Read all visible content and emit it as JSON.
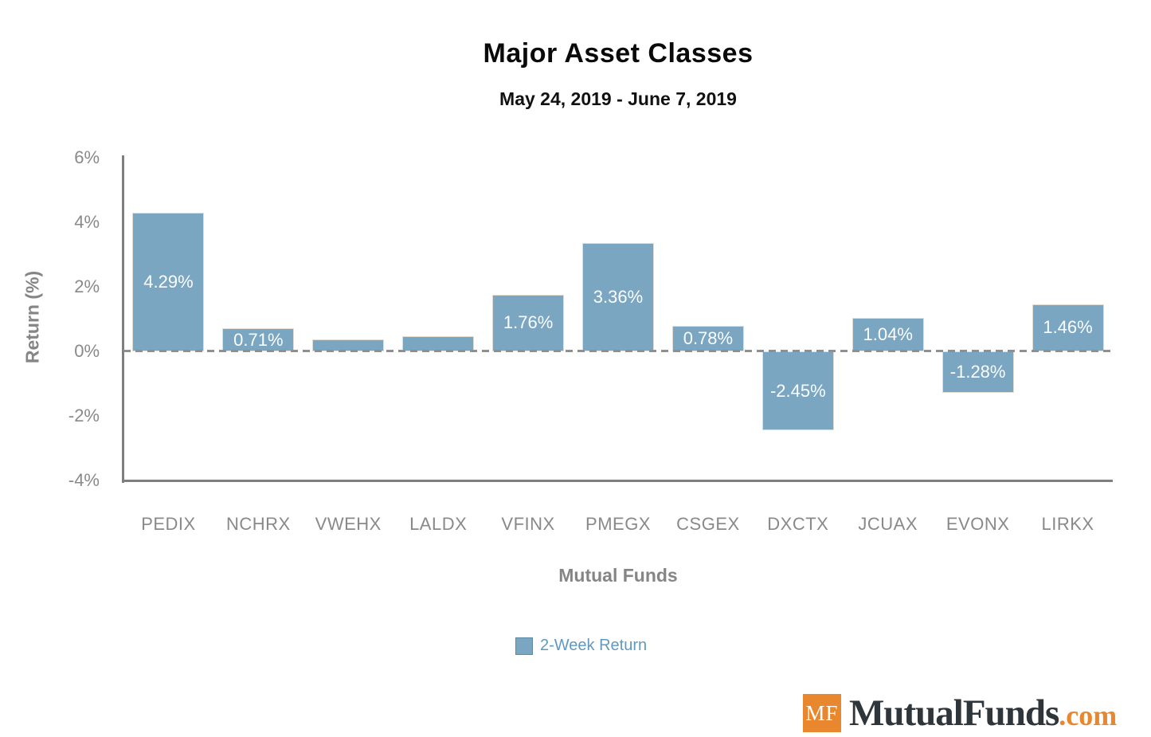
{
  "chart_data": {
    "type": "bar",
    "title": "Major Asset Classes",
    "subtitle": "May 24, 2019 - June 7, 2019",
    "xlabel": "Mutual Funds",
    "ylabel": "Return (%)",
    "categories": [
      "PEDIX",
      "NCHRX",
      "VWEHX",
      "LALDX",
      "VFINX",
      "PMEGX",
      "CSGEX",
      "DXCTX",
      "JCUAX",
      "EVONX",
      "LIRKX"
    ],
    "values": [
      4.29,
      0.71,
      0.38,
      0.48,
      1.76,
      3.36,
      0.78,
      -2.45,
      1.04,
      -1.28,
      1.46
    ],
    "bar_labels": [
      "4.29%",
      "0.71%",
      "",
      "",
      "1.76%",
      "3.36%",
      "0.78%",
      "-2.45%",
      "1.04%",
      "-1.28%",
      "1.46%"
    ],
    "y_ticks": [
      {
        "label": "6%",
        "value": 6
      },
      {
        "label": "4%",
        "value": 4
      },
      {
        "label": "2%",
        "value": 2
      },
      {
        "label": "0%",
        "value": 0
      },
      {
        "label": "-2%",
        "value": -2
      },
      {
        "label": "-4%",
        "value": -4
      }
    ],
    "ylim": [
      -4,
      6
    ],
    "grid": false,
    "zero_line_style": "dashed",
    "legend_position": "bottom",
    "legend": [
      {
        "label": "2-Week Return",
        "color": "#7aa6c2"
      }
    ],
    "bar_color": "#7aa6c2"
  },
  "logo": {
    "mark": "MF",
    "name": "MutualFunds",
    "tld": ".com",
    "mark_color": "#e8872e",
    "name_color": "#2e353b",
    "tld_color": "#e8872e"
  }
}
